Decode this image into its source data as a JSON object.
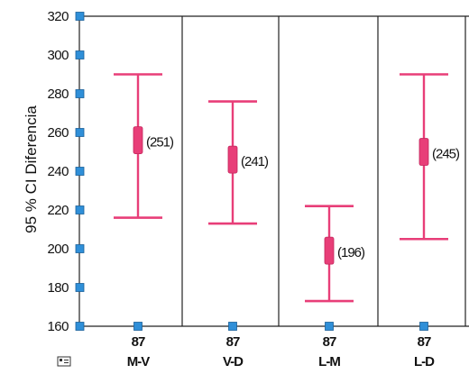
{
  "chart_data": {
    "type": "error-bar",
    "ylabel": "95 % CI Diferencia",
    "ylim": [
      160,
      320
    ],
    "yticks": [
      160,
      180,
      200,
      220,
      240,
      260,
      280,
      300,
      320
    ],
    "grid": true,
    "categories": [
      "M-V",
      "V-D",
      "L-M",
      "L-D"
    ],
    "n": [
      "87",
      "87",
      "87",
      "87"
    ],
    "series": [
      {
        "mean": [
          256,
          246,
          199,
          250
        ],
        "lower": [
          216,
          213,
          173,
          205
        ],
        "upper": [
          290,
          276,
          222,
          290
        ],
        "labels": [
          "(251)",
          "(241)",
          "(196)",
          "(245)"
        ]
      }
    ],
    "colors": {
      "errorbar": "#e83e78",
      "marker": "#e83e78",
      "tickmarker": "#2f8fd8",
      "grid": "#222222"
    }
  }
}
